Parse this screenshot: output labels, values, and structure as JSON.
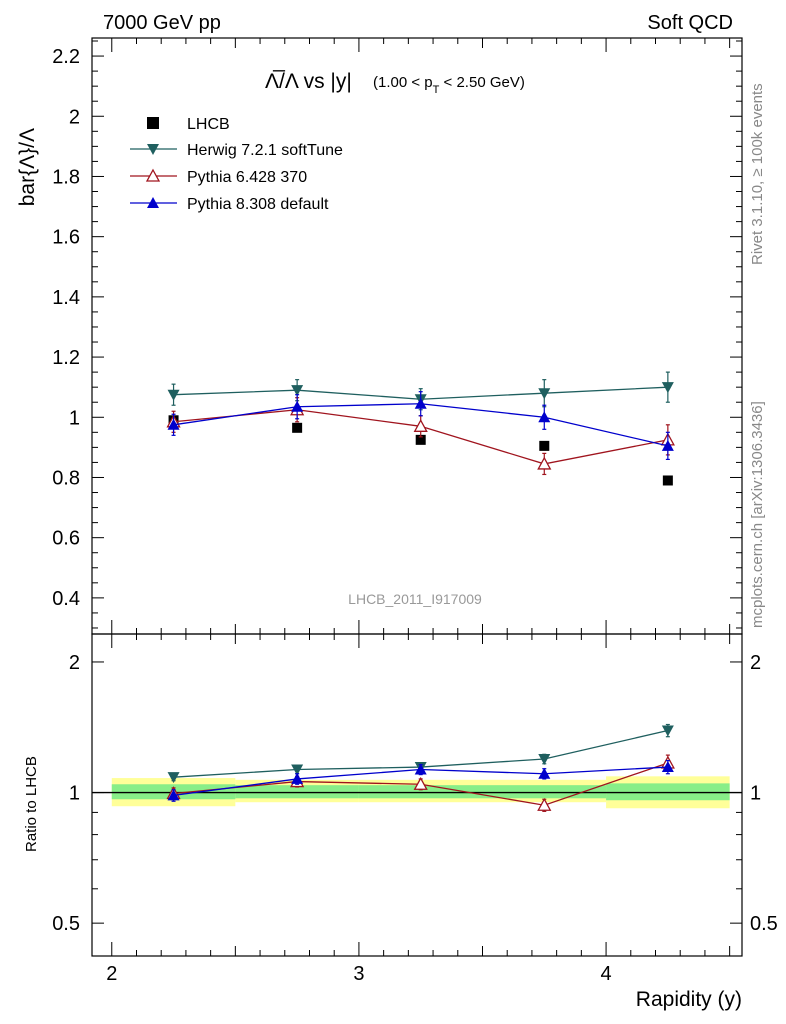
{
  "header": {
    "left": "7000 GeV pp",
    "right": "Soft QCD"
  },
  "side_labels": {
    "rivet": "Rivet 3.1.10, ≥ 100k events",
    "mcplots": "mcplots.cern.ch [arXiv:1306.3436]"
  },
  "plot_title": {
    "main": "Λ̅/Λ vs |y|",
    "cut_prefix": "(1.00 < p",
    "cut_sub": "T",
    "cut_suffix": " < 2.50 GeV)"
  },
  "watermark": "LHCB_2011_I917009",
  "colors": {
    "data": "#000000",
    "herwig": "#1f5f5f",
    "pythia6": "#a0141e",
    "pythia8": "#0000cc",
    "band_inner": "#88ee88",
    "band_outer": "#ffff99"
  },
  "chart_data": [
    {
      "type": "scatter",
      "panel": "main",
      "ylabel": "bar{Λ}/Λ",
      "xlim": [
        1.92,
        4.55
      ],
      "ylim": [
        0.28,
        2.26
      ],
      "yticks": [
        0.4,
        0.6,
        0.8,
        1,
        1.2,
        1.4,
        1.6,
        1.8,
        2,
        2.2
      ],
      "ytick_labels": [
        "0.4",
        "0.6",
        "0.8",
        "1",
        "1.2",
        "1.4",
        "1.6",
        "1.8",
        "2",
        "2.2"
      ],
      "legend_position": "top-left",
      "series": [
        {
          "name": "LHCB",
          "marker": "square",
          "x": [
            2.25,
            2.75,
            3.25,
            3.75,
            4.25
          ],
          "y": [
            0.99,
            0.965,
            0.925,
            0.905,
            0.79
          ],
          "err": [
            0.01,
            0.01,
            0.01,
            0.01,
            0.01
          ]
        },
        {
          "name": "Herwig 7.2.1 softTune",
          "marker": "triangle-down",
          "x": [
            2.25,
            2.75,
            3.25,
            3.75,
            4.25
          ],
          "y": [
            1.075,
            1.09,
            1.06,
            1.08,
            1.1
          ],
          "err": [
            0.035,
            0.035,
            0.035,
            0.045,
            0.05
          ]
        },
        {
          "name": "Pythia 6.428 370",
          "marker": "triangle-open",
          "x": [
            2.25,
            2.75,
            3.25,
            3.75,
            4.25
          ],
          "y": [
            0.985,
            1.025,
            0.97,
            0.845,
            0.925
          ],
          "err": [
            0.035,
            0.04,
            0.035,
            0.035,
            0.05
          ]
        },
        {
          "name": "Pythia 8.308 default",
          "marker": "triangle-up",
          "x": [
            2.25,
            2.75,
            3.25,
            3.75,
            4.25
          ],
          "y": [
            0.975,
            1.035,
            1.045,
            1.0,
            0.905
          ],
          "err": [
            0.035,
            0.04,
            0.04,
            0.04,
            0.045
          ]
        }
      ]
    },
    {
      "type": "scatter",
      "panel": "ratio",
      "xlabel": "Rapidity (y)",
      "ylabel": "Ratio to LHCB",
      "xlim": [
        1.92,
        4.55
      ],
      "ylim": [
        0.42,
        2.32
      ],
      "yscale": "log",
      "xticks": [
        2,
        3,
        4
      ],
      "xtick_labels": [
        "2",
        "3",
        "4"
      ],
      "yticks": [
        0.5,
        1,
        2
      ],
      "ytick_labels": [
        "0.5",
        "1",
        "2"
      ],
      "band_inner": [
        {
          "x": [
            2.0,
            2.5
          ],
          "lo": 0.965,
          "hi": 1.045
        },
        {
          "x": [
            2.5,
            3.0
          ],
          "lo": 0.97,
          "hi": 1.04
        },
        {
          "x": [
            3.0,
            3.5
          ],
          "lo": 0.97,
          "hi": 1.04
        },
        {
          "x": [
            3.5,
            4.0
          ],
          "lo": 0.97,
          "hi": 1.04
        },
        {
          "x": [
            4.0,
            4.5
          ],
          "lo": 0.96,
          "hi": 1.05
        }
      ],
      "band_outer": [
        {
          "x": [
            2.0,
            2.5
          ],
          "lo": 0.93,
          "hi": 1.08
        },
        {
          "x": [
            2.5,
            3.0
          ],
          "lo": 0.95,
          "hi": 1.07
        },
        {
          "x": [
            3.0,
            3.5
          ],
          "lo": 0.95,
          "hi": 1.07
        },
        {
          "x": [
            3.5,
            4.0
          ],
          "lo": 0.95,
          "hi": 1.07
        },
        {
          "x": [
            4.0,
            4.5
          ],
          "lo": 0.92,
          "hi": 1.09
        }
      ],
      "series": [
        {
          "name": "Herwig 7.2.1 softTune",
          "marker": "triangle-down",
          "x": [
            2.25,
            2.75,
            3.25,
            3.75,
            4.25
          ],
          "y": [
            1.085,
            1.13,
            1.145,
            1.195,
            1.39
          ],
          "err": [
            0.02,
            0.025,
            0.025,
            0.03,
            0.045
          ]
        },
        {
          "name": "Pythia 6.428 370",
          "marker": "triangle-open",
          "x": [
            2.25,
            2.75,
            3.25,
            3.75,
            4.25
          ],
          "y": [
            0.995,
            1.06,
            1.045,
            0.935,
            1.17
          ],
          "err": [
            0.03,
            0.03,
            0.03,
            0.03,
            0.05
          ]
        },
        {
          "name": "Pythia 8.308 default",
          "marker": "triangle-up",
          "x": [
            2.25,
            2.75,
            3.25,
            3.75,
            4.25
          ],
          "y": [
            0.985,
            1.075,
            1.13,
            1.105,
            1.145
          ],
          "err": [
            0.03,
            0.03,
            0.03,
            0.03,
            0.04
          ]
        }
      ]
    }
  ]
}
